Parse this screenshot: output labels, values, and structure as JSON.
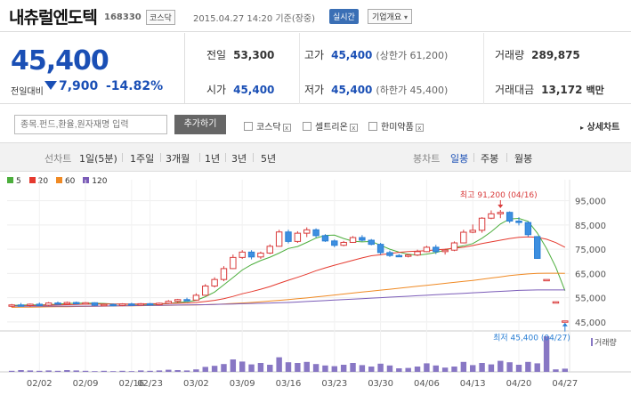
{
  "header": {
    "name": "내츄럴엔도텍",
    "code": "168330",
    "market": "코스닥",
    "datetime": "2015.04.27 14:20 기준(장중)",
    "realtime": "실시간",
    "company_info": "기업개요",
    "company_info_arrow": "▾"
  },
  "quote": {
    "price": "45,400",
    "change_label": "전일대비",
    "change": "7,900",
    "change_pct": "-14.82%",
    "prev_close_label": "전일",
    "prev_close": "53,300",
    "open_label": "시가",
    "open": "45,400",
    "high_label": "고가",
    "high": "45,400",
    "high_note": "(상한가 61,200)",
    "low_label": "저가",
    "low": "45,400",
    "low_note": "(하한가 45,400)",
    "volume_label": "거래량",
    "volume": "289,875",
    "amount_label": "거래대금",
    "amount": "13,172",
    "amount_unit": "백만"
  },
  "search": {
    "placeholder": "종목.펀드,환율,원자재명 입력",
    "add_label": "추가하기",
    "compare": [
      "코스닥",
      "셀트리온",
      "한미약품"
    ],
    "compare_remove": "x",
    "detail_label": "상세차트",
    "detail_arrow": "▸"
  },
  "tabs": {
    "line_label": "선차트",
    "line_periods": [
      "1일(5분)",
      "1주일",
      "3개월",
      "1년",
      "3년",
      "5년"
    ],
    "candle_label": "봉차트",
    "candle_periods": [
      "일봉",
      "주봉",
      "월봉"
    ],
    "candle_selected": "일봉"
  },
  "legend": [
    {
      "label": "5",
      "color": "#4cae3c"
    },
    {
      "label": "20",
      "color": "#e53a2f"
    },
    {
      "label": "60",
      "color": "#f08a24"
    },
    {
      "label": "120",
      "color": "#7b5cb8"
    }
  ],
  "chart_data": {
    "type": "candlestick",
    "ylim": [
      42000,
      100000
    ],
    "y_ticks": [
      "95,000",
      "85,000",
      "75,000",
      "65,000",
      "55,000",
      "45,000"
    ],
    "y_tick_values": [
      95000,
      85000,
      75000,
      65000,
      55000,
      45000
    ],
    "x_ticks": [
      "02/02",
      "02/09",
      "02/16",
      "02/23",
      "03/02",
      "03/09",
      "03/16",
      "03/23",
      "03/30",
      "04/06",
      "04/13",
      "04/20",
      "04/27"
    ],
    "max_label": "최고 91,200 (04/16)",
    "max_value": 91200,
    "min_label": "최저 45,400 (04/27)",
    "min_value": 45400,
    "volume_label": "거래량",
    "candles": [
      {
        "d": "01/28",
        "o": 51600,
        "h": 52400,
        "l": 51000,
        "c": 52000
      },
      {
        "d": "01/29",
        "o": 52000,
        "h": 52800,
        "l": 51400,
        "c": 51700
      },
      {
        "d": "01/30",
        "o": 51800,
        "h": 52600,
        "l": 51200,
        "c": 52300
      },
      {
        "d": "02/02",
        "o": 52300,
        "h": 53000,
        "l": 51600,
        "c": 51900
      },
      {
        "d": "02/03",
        "o": 51900,
        "h": 53200,
        "l": 51500,
        "c": 52800
      },
      {
        "d": "02/04",
        "o": 52800,
        "h": 53400,
        "l": 52000,
        "c": 52400
      },
      {
        "d": "02/05",
        "o": 52400,
        "h": 53400,
        "l": 52000,
        "c": 53000
      },
      {
        "d": "02/06",
        "o": 53000,
        "h": 53400,
        "l": 52200,
        "c": 52600
      },
      {
        "d": "02/09",
        "o": 52600,
        "h": 53200,
        "l": 52100,
        "c": 52900
      },
      {
        "d": "02/10",
        "o": 52900,
        "h": 53100,
        "l": 51600,
        "c": 51900
      },
      {
        "d": "02/11",
        "o": 51900,
        "h": 52600,
        "l": 51500,
        "c": 52200
      },
      {
        "d": "02/12",
        "o": 52200,
        "h": 52600,
        "l": 51400,
        "c": 51800
      },
      {
        "d": "02/13",
        "o": 51800,
        "h": 52700,
        "l": 51500,
        "c": 52400
      },
      {
        "d": "02/16",
        "o": 52400,
        "h": 52900,
        "l": 51700,
        "c": 52000
      },
      {
        "d": "02/17",
        "o": 52000,
        "h": 52800,
        "l": 51700,
        "c": 52500
      },
      {
        "d": "02/23",
        "o": 52500,
        "h": 52800,
        "l": 51800,
        "c": 52100
      },
      {
        "d": "02/24",
        "o": 52100,
        "h": 53000,
        "l": 51800,
        "c": 52700
      },
      {
        "d": "02/25",
        "o": 52700,
        "h": 54000,
        "l": 52400,
        "c": 53500
      },
      {
        "d": "02/26",
        "o": 53500,
        "h": 54500,
        "l": 53000,
        "c": 54200
      },
      {
        "d": "02/27",
        "o": 54200,
        "h": 55000,
        "l": 53600,
        "c": 54000
      },
      {
        "d": "03/02",
        "o": 54000,
        "h": 56800,
        "l": 53800,
        "c": 56000
      },
      {
        "d": "03/03",
        "o": 56000,
        "h": 60600,
        "l": 55800,
        "c": 59800
      },
      {
        "d": "03/04",
        "o": 59800,
        "h": 63400,
        "l": 59200,
        "c": 62500
      },
      {
        "d": "03/05",
        "o": 62500,
        "h": 68000,
        "l": 61800,
        "c": 67000
      },
      {
        "d": "03/06",
        "o": 67000,
        "h": 72800,
        "l": 66800,
        "c": 71600
      },
      {
        "d": "03/09",
        "o": 71600,
        "h": 74600,
        "l": 71000,
        "c": 73800
      },
      {
        "d": "03/10",
        "o": 73800,
        "h": 74600,
        "l": 70800,
        "c": 71800
      },
      {
        "d": "03/11",
        "o": 71800,
        "h": 74000,
        "l": 71000,
        "c": 73400
      },
      {
        "d": "03/12",
        "o": 73400,
        "h": 77000,
        "l": 73000,
        "c": 76200
      },
      {
        "d": "03/13",
        "o": 76200,
        "h": 83000,
        "l": 76000,
        "c": 82100
      },
      {
        "d": "03/16",
        "o": 82100,
        "h": 83000,
        "l": 77400,
        "c": 78200
      },
      {
        "d": "03/17",
        "o": 78200,
        "h": 82400,
        "l": 77600,
        "c": 81600
      },
      {
        "d": "03/18",
        "o": 81600,
        "h": 84000,
        "l": 80000,
        "c": 83000
      },
      {
        "d": "03/19",
        "o": 83000,
        "h": 83600,
        "l": 79800,
        "c": 80600
      },
      {
        "d": "03/20",
        "o": 80600,
        "h": 81200,
        "l": 78000,
        "c": 78400
      },
      {
        "d": "03/23",
        "o": 78400,
        "h": 79000,
        "l": 75800,
        "c": 76600
      },
      {
        "d": "03/24",
        "o": 76600,
        "h": 78400,
        "l": 76200,
        "c": 77800
      },
      {
        "d": "03/25",
        "o": 77800,
        "h": 80400,
        "l": 77600,
        "c": 79800
      },
      {
        "d": "03/26",
        "o": 79800,
        "h": 80800,
        "l": 78200,
        "c": 78700
      },
      {
        "d": "03/27",
        "o": 78700,
        "h": 79200,
        "l": 76600,
        "c": 77000
      },
      {
        "d": "03/30",
        "o": 77000,
        "h": 77600,
        "l": 72800,
        "c": 73600
      },
      {
        "d": "03/31",
        "o": 73600,
        "h": 74400,
        "l": 71800,
        "c": 72400
      },
      {
        "d": "04/01",
        "o": 72400,
        "h": 73000,
        "l": 71800,
        "c": 72200
      },
      {
        "d": "04/02",
        "o": 72200,
        "h": 73000,
        "l": 71600,
        "c": 72600
      },
      {
        "d": "04/03",
        "o": 72600,
        "h": 74800,
        "l": 72200,
        "c": 74000
      },
      {
        "d": "04/06",
        "o": 74000,
        "h": 76400,
        "l": 73800,
        "c": 75800
      },
      {
        "d": "04/07",
        "o": 75800,
        "h": 76800,
        "l": 73000,
        "c": 74000
      },
      {
        "d": "04/08",
        "o": 74000,
        "h": 75200,
        "l": 72800,
        "c": 74600
      },
      {
        "d": "04/09",
        "o": 74600,
        "h": 78200,
        "l": 74200,
        "c": 77600
      },
      {
        "d": "04/10",
        "o": 77600,
        "h": 83000,
        "l": 77400,
        "c": 82000
      },
      {
        "d": "04/13",
        "o": 82000,
        "h": 85200,
        "l": 81600,
        "c": 82800
      },
      {
        "d": "04/14",
        "o": 82800,
        "h": 88200,
        "l": 81800,
        "c": 87800
      },
      {
        "d": "04/15",
        "o": 87800,
        "h": 91000,
        "l": 87400,
        "c": 89600
      },
      {
        "d": "04/16",
        "o": 89600,
        "h": 91200,
        "l": 87800,
        "c": 90200
      },
      {
        "d": "04/17",
        "o": 90200,
        "h": 90600,
        "l": 85800,
        "c": 86600
      },
      {
        "d": "04/20",
        "o": 86600,
        "h": 88200,
        "l": 84800,
        "c": 86000
      },
      {
        "d": "04/21",
        "o": 86000,
        "h": 86400,
        "l": 80200,
        "c": 81000
      },
      {
        "d": "04/22",
        "o": 80200,
        "h": 80400,
        "l": 71000,
        "c": 71200
      },
      {
        "d": "04/23",
        "o": 62500,
        "h": 62500,
        "l": 62500,
        "c": 62500
      },
      {
        "d": "04/24",
        "o": 53300,
        "h": 53300,
        "l": 53300,
        "c": 53300
      },
      {
        "d": "04/27",
        "o": 45400,
        "h": 45400,
        "l": 45400,
        "c": 45400
      }
    ],
    "ma": {
      "5": [
        51800,
        51900,
        52000,
        52000,
        52100,
        52300,
        52600,
        52700,
        52800,
        52700,
        52600,
        52400,
        52300,
        52200,
        52200,
        52200,
        52300,
        52600,
        53000,
        53300,
        53900,
        55400,
        57300,
        60300,
        63300,
        66400,
        68600,
        70300,
        71700,
        73400,
        75300,
        76100,
        77800,
        79600,
        80700,
        80800,
        79400,
        78300,
        78000,
        78200,
        76600,
        75000,
        73800,
        72900,
        72500,
        73000,
        73600,
        74600,
        75700,
        76400,
        77300,
        79500,
        82200,
        85400,
        87500,
        87700,
        86500,
        81700,
        75300,
        67600,
        57900
      ],
      "20": [
        51500,
        51600,
        51700,
        51800,
        51900,
        52000,
        52100,
        52200,
        52300,
        52300,
        52400,
        52400,
        52400,
        52400,
        52400,
        52500,
        52500,
        52600,
        52700,
        52800,
        53000,
        53400,
        53900,
        54600,
        55500,
        56600,
        57500,
        58500,
        59600,
        60900,
        62200,
        63400,
        64700,
        66100,
        67300,
        68400,
        69400,
        70400,
        71400,
        72300,
        72700,
        73200,
        73700,
        74000,
        74200,
        74400,
        74700,
        75000,
        75400,
        75800,
        76500,
        77300,
        78000,
        78700,
        79400,
        79900,
        80100,
        79900,
        79100,
        77700,
        75800
      ],
      "60": [
        51000,
        51050,
        51100,
        51150,
        51200,
        51250,
        51300,
        51350,
        51400,
        51450,
        51500,
        51550,
        51600,
        51650,
        51700,
        51750,
        51800,
        51850,
        51900,
        51950,
        52000,
        52100,
        52250,
        52400,
        52600,
        52800,
        53000,
        53300,
        53600,
        53900,
        54200,
        54550,
        54900,
        55300,
        55700,
        56100,
        56500,
        56900,
        57300,
        57700,
        58100,
        58500,
        58900,
        59300,
        59700,
        60100,
        60500,
        60900,
        61300,
        61700,
        62100,
        62600,
        63100,
        63600,
        64100,
        64500,
        64800,
        65000,
        65100,
        65100,
        65000
      ],
      "120": [
        51500,
        51500,
        51500,
        51500,
        51500,
        51500,
        51500,
        51500,
        51500,
        51500,
        51550,
        51600,
        51650,
        51700,
        51750,
        51800,
        51850,
        51900,
        51950,
        52000,
        52050,
        52100,
        52200,
        52300,
        52400,
        52500,
        52600,
        52700,
        52800,
        52900,
        53000,
        53200,
        53400,
        53600,
        53800,
        54000,
        54200,
        54400,
        54600,
        54800,
        55000,
        55200,
        55400,
        55600,
        55800,
        56000,
        56200,
        56400,
        56600,
        56800,
        57000,
        57200,
        57400,
        57600,
        57800,
        58000,
        58100,
        58200,
        58200,
        58200,
        58200
      ]
    },
    "volumes": [
      3,
      5,
      4,
      3,
      4,
      3,
      5,
      4,
      3,
      2,
      3,
      2,
      3,
      2,
      4,
      3,
      4,
      6,
      5,
      4,
      7,
      14,
      17,
      22,
      35,
      29,
      21,
      25,
      20,
      41,
      27,
      25,
      28,
      22,
      18,
      16,
      20,
      25,
      19,
      15,
      23,
      18,
      10,
      11,
      15,
      24,
      18,
      12,
      15,
      28,
      19,
      25,
      21,
      31,
      27,
      20,
      28,
      24,
      100,
      7,
      9
    ]
  }
}
